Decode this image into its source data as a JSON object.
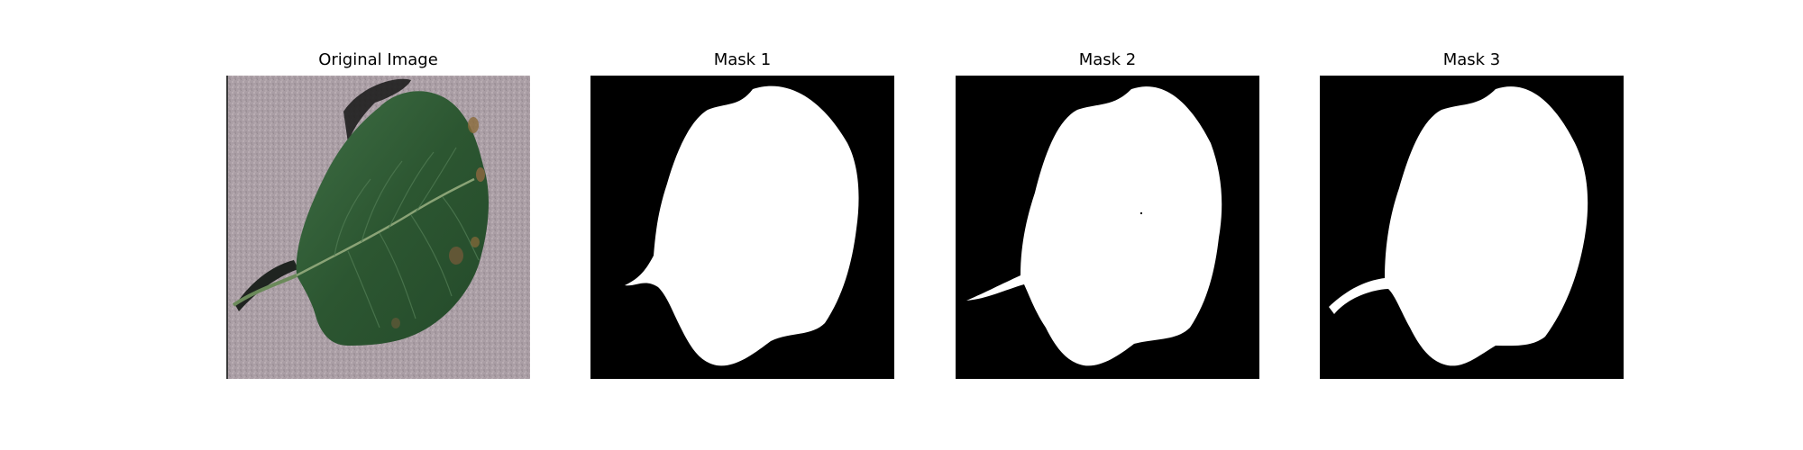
{
  "panels": [
    {
      "title": "Original Image"
    },
    {
      "title": "Mask 1"
    },
    {
      "title": "Mask 2"
    },
    {
      "title": "Mask 3"
    }
  ],
  "colors": {
    "background": "#ffffff",
    "mask_background": "#000000",
    "mask_foreground": "#ffffff",
    "leaf_green": "#2f5a34",
    "surface_gray": "#aea1a8"
  }
}
